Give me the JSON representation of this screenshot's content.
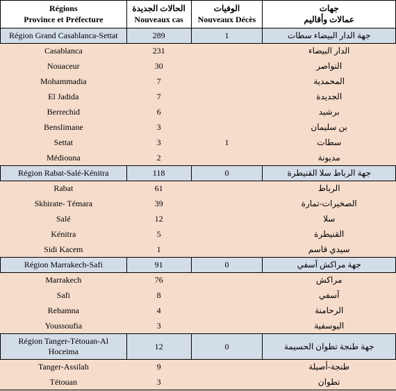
{
  "header": {
    "col1_fr_l1": "Régions",
    "col1_fr_l2": "Province et Préfecture",
    "col2_ar": "الحالات الجديدة",
    "col2_fr": "Nouveaux cas",
    "col3_ar": "الوفيات",
    "col3_fr": "Nouveaux Décès",
    "col4_ar_l1": "جهات",
    "col4_ar_l2": "عمالات وأقاليم"
  },
  "colwidths": {
    "c1": 182,
    "c2": 93,
    "c3": 103,
    "c4": 192
  },
  "colors": {
    "bg": "#f6dccb",
    "region_bg": "#d2dde8",
    "header_bg": "#ffffff",
    "border": "#000000",
    "text": "#000000"
  },
  "fontsize": 12,
  "groups": [
    {
      "region": {
        "fr": "Région Grand Casablanca-Settat",
        "cas": "289",
        "dec": "1",
        "ar": "جهة الدار البيضاء سطات"
      },
      "provinces": [
        {
          "fr": "Casablanca",
          "cas": "231",
          "dec": "",
          "ar": "الدار البيضاء"
        },
        {
          "fr": "Nouaceur",
          "cas": "30",
          "dec": "",
          "ar": "النواصر"
        },
        {
          "fr": "Mohammadia",
          "cas": "7",
          "dec": "",
          "ar": "المحمدية"
        },
        {
          "fr": "El Jadida",
          "cas": "7",
          "dec": "",
          "ar": "الجديدة"
        },
        {
          "fr": "Berrechid",
          "cas": "6",
          "dec": "",
          "ar": "برشيد"
        },
        {
          "fr": "Benslimane",
          "cas": "3",
          "dec": "",
          "ar": "بن سليمان"
        },
        {
          "fr": "Settat",
          "cas": "3",
          "dec": "1",
          "ar": "سطات"
        },
        {
          "fr": "Médiouna",
          "cas": "2",
          "dec": "",
          "ar": "مديونة"
        }
      ]
    },
    {
      "region": {
        "fr": "Région Rabat-Salé-Kénitra",
        "cas": "118",
        "dec": "0",
        "ar": "جهة الرباط سلا القنيطرة"
      },
      "provinces": [
        {
          "fr": "Rabat",
          "cas": "61",
          "dec": "",
          "ar": "الرباط"
        },
        {
          "fr": "Skhirate- Témara",
          "cas": "39",
          "dec": "",
          "ar": "الصخيرات-تمارة"
        },
        {
          "fr": "Salé",
          "cas": "12",
          "dec": "",
          "ar": "سلا"
        },
        {
          "fr": "Kénitra",
          "cas": "5",
          "dec": "",
          "ar": "القنيطرة"
        },
        {
          "fr": "Sidi Kacem",
          "cas": "1",
          "dec": "",
          "ar": "سيدي قاسم"
        }
      ]
    },
    {
      "region": {
        "fr": "Région Marrakech-Safi",
        "cas": "91",
        "dec": "0",
        "ar": "جهة مراكش آسفي"
      },
      "provinces": [
        {
          "fr": "Marrakech",
          "cas": "76",
          "dec": "",
          "ar": "مراكش"
        },
        {
          "fr": "Safi",
          "cas": "8",
          "dec": "",
          "ar": "آسفي"
        },
        {
          "fr": "Rehamna",
          "cas": "4",
          "dec": "",
          "ar": "الرحامنة"
        },
        {
          "fr": "Youssoufia",
          "cas": "3",
          "dec": "",
          "ar": "اليوسفية"
        }
      ]
    },
    {
      "region": {
        "fr": "Région Tanger-Tétouan-Al Hoceima",
        "cas": "12",
        "dec": "0",
        "ar": "جهة طنجة تطوان الحسيمة"
      },
      "provinces": [
        {
          "fr": "Tanger-Assilah",
          "cas": "9",
          "dec": "",
          "ar": "طنجة-أصيلة"
        },
        {
          "fr": "Tétouan",
          "cas": "3",
          "dec": "",
          "ar": "تطوان"
        }
      ]
    }
  ]
}
